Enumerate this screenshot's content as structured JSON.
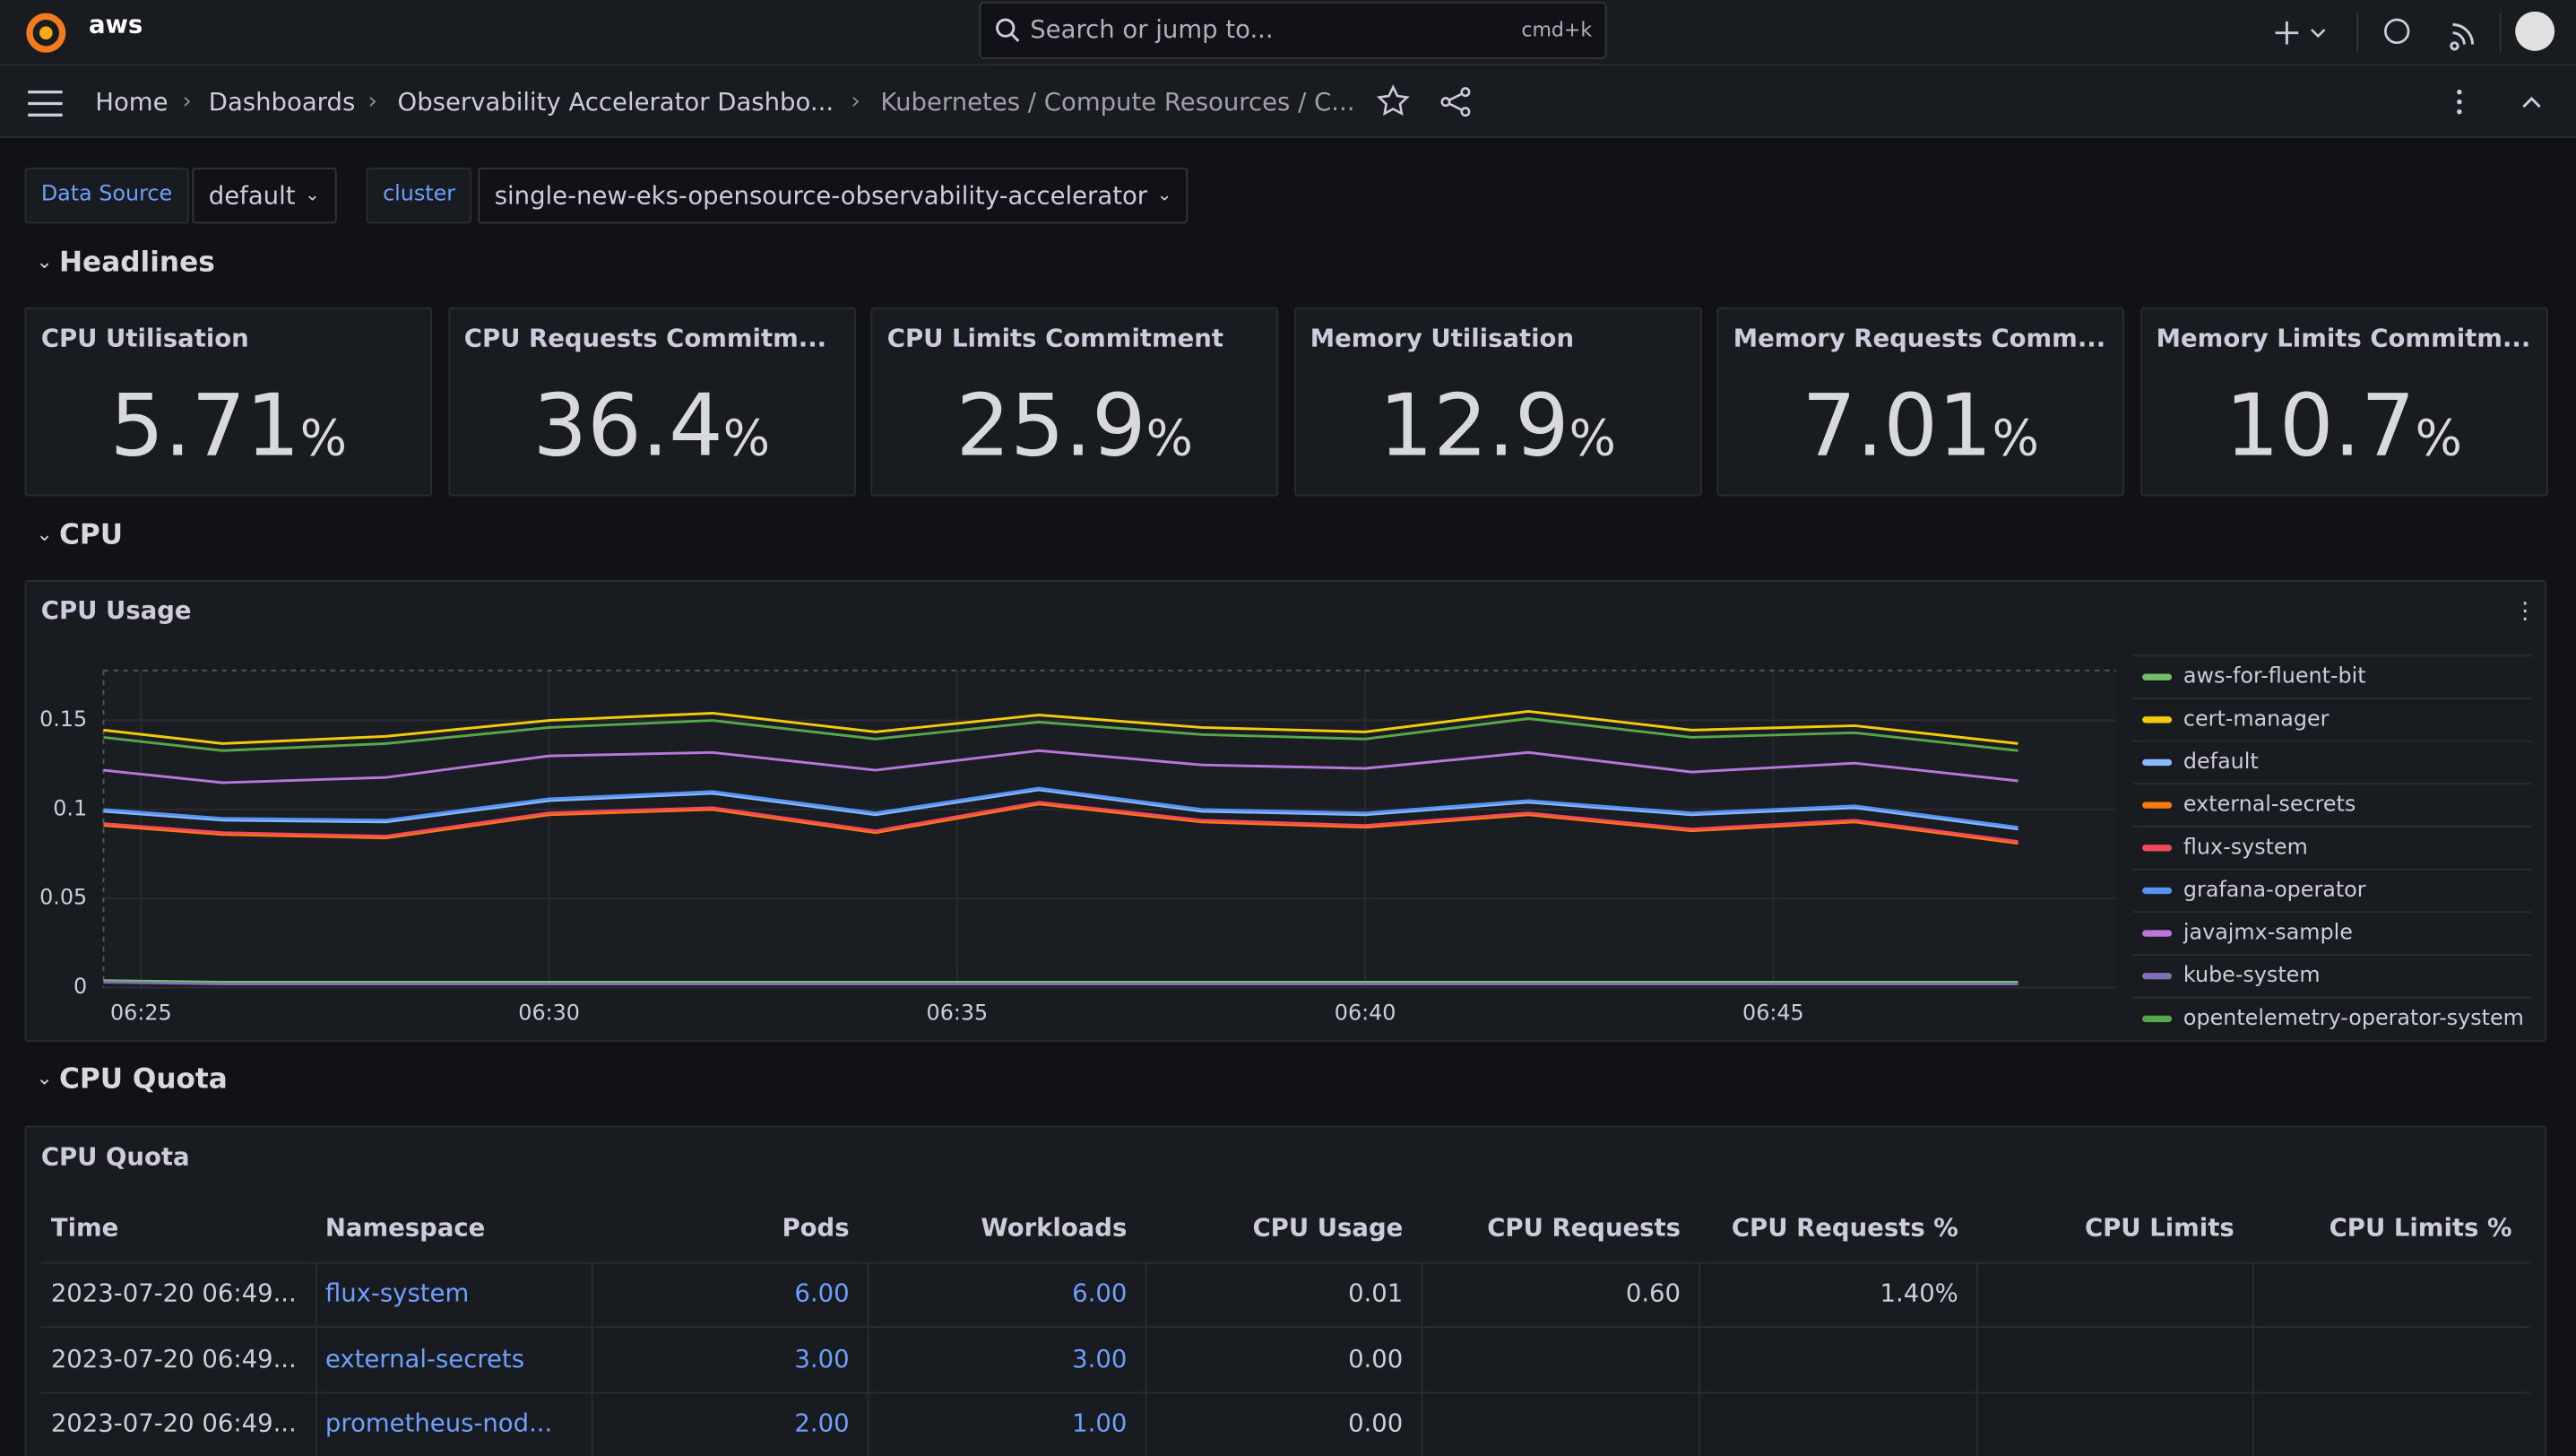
{
  "topbar": {
    "brand": "aws",
    "search": "Search or jump to...",
    "shortcut": "cmd+k"
  },
  "breadcrumbs": [
    "Home",
    "Dashboards",
    "Observability Accelerator Dashbo...",
    "Kubernetes / Compute Resources / C..."
  ],
  "variables": [
    {
      "label": "Data Source",
      "value": "default"
    },
    {
      "label": "cluster",
      "value": "single-new-eks-opensource-observability-accelerator"
    }
  ],
  "rows": [
    "Headlines",
    "CPU",
    "CPU Quota"
  ],
  "stats": [
    {
      "title": "CPU Utilisation",
      "value": 5.71,
      "unit": "%"
    },
    {
      "title": "CPU Requests Commitm...",
      "value": 36.4,
      "unit": "%"
    },
    {
      "title": "CPU Limits Commitment",
      "value": 25.9,
      "unit": "%"
    },
    {
      "title": "Memory Utilisation",
      "value": 12.9,
      "unit": "%"
    },
    {
      "title": "Memory Requests Comm...",
      "value": 7.01,
      "unit": "%"
    },
    {
      "title": "Memory Limits Commitm...",
      "value": 10.7,
      "unit": "%"
    }
  ],
  "chart_data": {
    "type": "line",
    "title": "CPU Usage",
    "x": [
      24.54,
      26,
      28,
      30,
      32,
      34,
      36,
      38,
      40,
      42,
      44,
      46,
      48
    ],
    "xlim": [
      24.54,
      49.2
    ],
    "xticks": [
      {
        "value": 25,
        "label": "06:25"
      },
      {
        "value": 30,
        "label": "06:30"
      },
      {
        "value": 35,
        "label": "06:35"
      },
      {
        "value": 40,
        "label": "06:40"
      },
      {
        "value": 45,
        "label": "06:45"
      }
    ],
    "ylim": [
      0,
      0.178
    ],
    "yticks": [
      0,
      0.05,
      0.1,
      0.15
    ],
    "grid": true,
    "legend": "right",
    "series": [
      {
        "name": "aws-for-fluent-bit",
        "color": "#73bf69",
        "values": [
          0.004,
          0.003,
          0.003,
          0.003,
          0.003,
          0.003,
          0.003,
          0.003,
          0.003,
          0.003,
          0.003,
          0.003,
          0.003
        ]
      },
      {
        "name": "cert-manager",
        "color": "#f2cc0c",
        "values": [
          0.1445,
          0.137,
          0.141,
          0.15,
          0.154,
          0.1435,
          0.153,
          0.146,
          0.1435,
          0.155,
          0.1445,
          0.147,
          0.137
        ]
      },
      {
        "name": "default",
        "color": "#8ab8ff",
        "values": [
          0.099,
          0.094,
          0.093,
          0.105,
          0.109,
          0.097,
          0.111,
          0.099,
          0.097,
          0.104,
          0.097,
          0.101,
          0.089
        ]
      },
      {
        "name": "external-secrets",
        "color": "#ff780a",
        "values": [
          0.091,
          0.086,
          0.084,
          0.097,
          0.1,
          0.087,
          0.103,
          0.093,
          0.09,
          0.097,
          0.088,
          0.093,
          0.081
        ]
      },
      {
        "name": "flux-system",
        "color": "#f2495c",
        "values": [
          0.092,
          0.087,
          0.085,
          0.098,
          0.101,
          0.088,
          0.104,
          0.094,
          0.091,
          0.098,
          0.089,
          0.094,
          0.082
        ]
      },
      {
        "name": "grafana-operator",
        "color": "#5794f2",
        "values": [
          0.1,
          0.095,
          0.094,
          0.106,
          0.11,
          0.098,
          0.112,
          0.1,
          0.098,
          0.105,
          0.098,
          0.102,
          0.09
        ]
      },
      {
        "name": "javajmx-sample",
        "color": "#b877d9",
        "values": [
          0.122,
          0.115,
          0.118,
          0.13,
          0.132,
          0.122,
          0.133,
          0.125,
          0.123,
          0.132,
          0.121,
          0.126,
          0.116
        ]
      },
      {
        "name": "kube-system",
        "color": "#806eb7",
        "values": [
          0.003,
          0.002,
          0.002,
          0.002,
          0.002,
          0.002,
          0.002,
          0.002,
          0.002,
          0.002,
          0.002,
          0.002,
          0.002
        ]
      },
      {
        "name": "opentelemetry-operator-system",
        "color": "#56a64b",
        "values": [
          0.1405,
          0.133,
          0.137,
          0.146,
          0.15,
          0.1395,
          0.149,
          0.142,
          0.1395,
          0.151,
          0.1405,
          0.143,
          0.133
        ]
      }
    ]
  },
  "table": {
    "title": "CPU Quota",
    "columns": [
      "Time",
      "Namespace",
      "Pods",
      "Workloads",
      "CPU Usage",
      "CPU Requests",
      "CPU Requests %",
      "CPU Limits",
      "CPU Limits %"
    ],
    "rows": [
      [
        "2023-07-20 06:49...",
        "flux-system",
        "6.00",
        "6.00",
        "0.01",
        "0.60",
        "1.40%"
      ],
      [
        "2023-07-20 06:49...",
        "external-secrets",
        "3.00",
        "3.00",
        "0.00"
      ],
      [
        "2023-07-20 06:49...",
        "prometheus-nod...",
        "2.00",
        "1.00",
        "0.00"
      ]
    ]
  }
}
